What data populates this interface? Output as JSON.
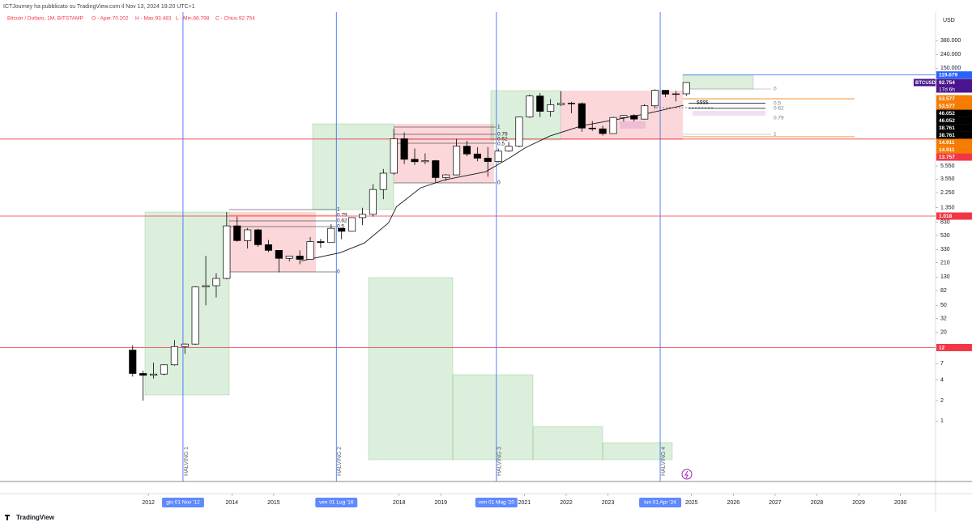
{
  "header": "ICTJourney ha pubblicato su TradingView.com il Nov 13, 2024 19:20 UTC+1",
  "footer": "TradingView",
  "chart_data": {
    "type": "candlestick",
    "title": "Bitcoin / Dollaro, 1M, BITSTAMP",
    "legend_values": [
      "O - Aper.70.202",
      "H - Max.93.483",
      "L - Min.66.798",
      "C - Chius.92.754"
    ],
    "currency": "USD",
    "symbol": "BTCUSD",
    "log_scale": true,
    "grid": false,
    "up_color": "#ffffff",
    "down_color": "#000000",
    "x": [
      2011.625,
      2011.875,
      2012.125,
      2012.375,
      2012.625,
      2012.875,
      2013.125,
      2013.375,
      2013.625,
      2013.875,
      2014.125,
      2014.375,
      2014.625,
      2014.875,
      2015.125,
      2015.375,
      2015.625,
      2015.875,
      2016.125,
      2016.375,
      2016.625,
      2016.875,
      2017.125,
      2017.375,
      2017.625,
      2017.875,
      2018.125,
      2018.375,
      2018.625,
      2018.875,
      2019.125,
      2019.375,
      2019.625,
      2019.875,
      2020.125,
      2020.375,
      2020.625,
      2020.875,
      2021.125,
      2021.375,
      2021.625,
      2021.875,
      2022.125,
      2022.375,
      2022.625,
      2022.875,
      2023.125,
      2023.375,
      2023.625,
      2023.875,
      2024.125,
      2024.375,
      2024.625,
      2024.875
    ],
    "open": [
      11,
      5,
      4.7,
      4.9,
      6.7,
      12.4,
      13.5,
      93,
      97,
      124,
      732,
      445,
      640,
      387,
      320,
      244,
      264,
      236,
      430,
      416,
      673,
      609,
      966,
      1080,
      2500,
      4340,
      13880,
      6930,
      6390,
      6625,
      3740,
      4100,
      10800,
      8300,
      7200,
      6430,
      9140,
      10780,
      28990,
      58800,
      35040,
      43800,
      46200,
      45500,
      19900,
      19400,
      16540,
      28470,
      30470,
      26960,
      42260,
      71330,
      62700,
      63300
    ],
    "high": [
      13,
      5.5,
      7.2,
      6.8,
      15.4,
      13.8,
      95,
      266,
      148,
      1163,
      1000,
      680,
      660,
      455,
      320,
      265,
      320,
      500,
      470,
      780,
      680,
      980,
      1350,
      3000,
      5000,
      19666,
      17200,
      10000,
      8500,
      6800,
      4200,
      13880,
      13000,
      10400,
      10500,
      10000,
      12480,
      29300,
      61800,
      64900,
      52900,
      69000,
      48200,
      47400,
      25200,
      21500,
      29190,
      31000,
      31800,
      44700,
      73800,
      72000,
      70000,
      93483
    ],
    "low": [
      4.5,
      2,
      4.2,
      4.7,
      6.5,
      9.7,
      13.2,
      50,
      65,
      120,
      430,
      340,
      360,
      300,
      152,
      220,
      200,
      236,
      350,
      415,
      465,
      600,
      750,
      1000,
      1800,
      4100,
      5900,
      5750,
      5880,
      3150,
      3350,
      4050,
      7700,
      6500,
      3850,
      6200,
      8900,
      10400,
      28100,
      28800,
      29300,
      42000,
      32900,
      17600,
      18150,
      15480,
      16500,
      24800,
      24900,
      26600,
      38500,
      56500,
      49000,
      58900
    ],
    "close": [
      5,
      4.7,
      4.9,
      6.7,
      12.4,
      13.5,
      93,
      97,
      124,
      732,
      445,
      640,
      387,
      320,
      244,
      264,
      236,
      430,
      416,
      673,
      609,
      966,
      1080,
      2500,
      4340,
      13880,
      6930,
      6390,
      6625,
      3740,
      4100,
      10800,
      8300,
      7200,
      6430,
      9140,
      10780,
      28990,
      58800,
      35040,
      43800,
      46200,
      45500,
      19900,
      19400,
      16540,
      28470,
      30470,
      26960,
      42260,
      71330,
      62700,
      63300,
      92754
    ],
    "ma": {
      "color": "#131722",
      "x": [
        2015.66,
        2016.59,
        2017.17,
        2017.75,
        2017.94,
        2018.52,
        2019.1,
        2020.07,
        2020.65,
        2021.03,
        2021.61,
        2022.38,
        2023.16,
        2023.94,
        2024.81
      ],
      "values": [
        224,
        295,
        410,
        810,
        1400,
        2650,
        3470,
        4550,
        7300,
        10300,
        15200,
        21600,
        26300,
        32500,
        43000
      ]
    },
    "xlim": [
      2008.45,
      2030.84
    ],
    "ylim": [
      0.13,
      1000000
    ],
    "xticks": [
      2012,
      2014,
      2015,
      2018,
      2019,
      2021,
      2022,
      2023,
      2025,
      2026,
      2027,
      2028,
      2029,
      2030
    ],
    "yticks": [
      1,
      2,
      4,
      7,
      20,
      32,
      50,
      82,
      130,
      210,
      330,
      530,
      830,
      {
        "value": 1350,
        "label": "1.350"
      },
      {
        "value": 2250,
        "label": "2.250"
      },
      {
        "value": 3550,
        "label": "3.550"
      },
      {
        "value": 5550,
        "label": "5.550"
      },
      {
        "value": 150000,
        "label": "150.000"
      },
      {
        "value": 240000,
        "label": "240.000"
      },
      {
        "value": 380000,
        "label": "380.000"
      }
    ],
    "price_tags": [
      {
        "value": 119679,
        "label": "119.679",
        "color": "#2962ff"
      },
      {
        "value": 92754,
        "label": "92.754",
        "color": "#4a148c",
        "sub": "17d 6h"
      },
      {
        "value": 53577,
        "label": "53.577",
        "color": "#f57c00"
      },
      {
        "value": 53577,
        "label": "53.577",
        "color": "#f57c00"
      },
      {
        "value": 46052,
        "label": "46.052",
        "color": "#000000"
      },
      {
        "value": 46052,
        "label": "46.052",
        "color": "#000000"
      },
      {
        "value": 38761,
        "label": "38.761",
        "color": "#000000"
      },
      {
        "value": 38761,
        "label": "38.761",
        "color": "#000000"
      },
      {
        "value": 14911,
        "label": "14.911",
        "color": "#f57c00"
      },
      {
        "value": 14911,
        "label": "14.911",
        "color": "#f57c00"
      },
      {
        "value": 13757,
        "label": "13.757",
        "color": "#f23645"
      },
      {
        "value": 1018,
        "label": "1.018",
        "color": "#f23645"
      },
      {
        "value": 12,
        "label": "12",
        "color": "#f23645"
      }
    ],
    "halvings": [
      {
        "x": 2012.83,
        "label": "HALVING 1",
        "date_label": "gio 01 Nov '12"
      },
      {
        "x": 2016.5,
        "label": "HALVING 2",
        "date_label": "ven 01 Lug '16"
      },
      {
        "x": 2020.33,
        "label": "HALVING 3",
        "date_label": "ven 01 Mag '20"
      },
      {
        "x": 2024.25,
        "label": "HALVING 4",
        "date_label": "lun 01 Apr '24"
      }
    ],
    "fib_labels": {
      "c1": [
        "1",
        "0.79",
        "0.62",
        "0.5",
        "0"
      ],
      "c2": [
        "1",
        "0.79",
        "0.62",
        "0.5",
        "0"
      ],
      "c3": [
        "0",
        "0.5",
        "0.62",
        "0.79",
        "1"
      ],
      "target": "$$$$"
    }
  }
}
